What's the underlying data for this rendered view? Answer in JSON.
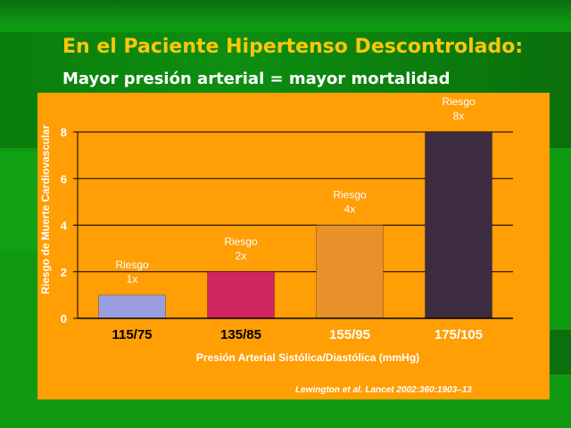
{
  "slide": {
    "title": "En el Paciente Hipertenso Descontrolado:",
    "subtitle": "Mayor presión arterial = mayor mortalidad",
    "citation": "Lewington et al. Lancet 2002:360:1903–13"
  },
  "colors": {
    "background": "#0f9a12",
    "panel": "#ff9e05",
    "title": "#ffc60a",
    "axis_text": "#ffffff",
    "tick_text": "#000000"
  },
  "chart_data": {
    "type": "bar",
    "title": "",
    "xlabel": "Presión Arterial Sistólica/Diastólica (mmHg)",
    "ylabel": "Riesgo de Muerte Cardiovascular",
    "categories": [
      "115/75",
      "135/85",
      "155/95",
      "175/105"
    ],
    "values": [
      1,
      2,
      4,
      8
    ],
    "bar_colors": [
      "#9a9ee0",
      "#d0255f",
      "#e8902a",
      "#3d2b40"
    ],
    "data_labels": [
      [
        "Riesgo",
        "1x"
      ],
      [
        "Riesgo",
        "2x"
      ],
      [
        "Riesgo",
        "4x"
      ],
      [
        "Riesgo",
        "8x"
      ]
    ],
    "yticks": [
      0,
      2,
      4,
      6,
      8
    ],
    "ylim": [
      0,
      8
    ],
    "grid": true
  }
}
